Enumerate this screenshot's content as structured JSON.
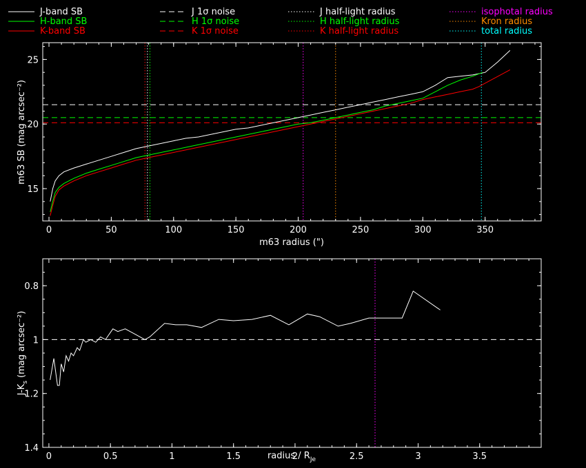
{
  "legend": {
    "col1": [
      {
        "label": "J-band SB",
        "color": "#ffffff",
        "dash": "solid"
      },
      {
        "label": "H-band SB",
        "color": "#00ff00",
        "dash": "solid"
      },
      {
        "label": "K-band SB",
        "color": "#ff0000",
        "dash": "solid"
      }
    ],
    "col2": [
      {
        "label": "J 1σ noise",
        "color": "#ffffff",
        "dash": "dashed"
      },
      {
        "label": "H 1σ noise",
        "color": "#00ff00",
        "dash": "dashed"
      },
      {
        "label": "K 1σ noise",
        "color": "#ff0000",
        "dash": "dashed"
      }
    ],
    "col3": [
      {
        "label": "J half-light radius",
        "color": "#ffffff",
        "dash": "dotted"
      },
      {
        "label": "H half-light radius",
        "color": "#00ff00",
        "dash": "dotted"
      },
      {
        "label": "K half-light radius",
        "color": "#ff0000",
        "dash": "dotted"
      }
    ],
    "col4": [
      {
        "label": "isophotal radius",
        "color": "#ff00ff",
        "dash": "dotted"
      },
      {
        "label": "Kron radius",
        "color": "#ff8c00",
        "dash": "dotted"
      },
      {
        "label": "total radius",
        "color": "#00ffff",
        "dash": "dotted"
      }
    ]
  },
  "chart_data": [
    {
      "type": "line",
      "xlabel": "m63 radius (\")",
      "ylabel": "m63 SB (mag arcsec⁻²)",
      "xlim": [
        -5,
        395
      ],
      "ylim": [
        26.3,
        12.5
      ],
      "xticks": [
        0,
        50,
        100,
        150,
        200,
        250,
        300,
        350
      ],
      "yticks": [
        15,
        20,
        25
      ],
      "series": [
        {
          "name": "J-band SB",
          "color": "#ffffff",
          "x": [
            1,
            3,
            5,
            8,
            12,
            20,
            30,
            40,
            50,
            60,
            70,
            80,
            90,
            100,
            110,
            120,
            130,
            140,
            150,
            160,
            170,
            180,
            190,
            200,
            210,
            220,
            230,
            240,
            250,
            260,
            270,
            280,
            290,
            300,
            310,
            320,
            330,
            340,
            350,
            360,
            370
          ],
          "y": [
            14.0,
            15.0,
            15.6,
            16.0,
            16.3,
            16.6,
            16.9,
            17.2,
            17.5,
            17.8,
            18.1,
            18.3,
            18.5,
            18.7,
            18.9,
            19.0,
            19.2,
            19.4,
            19.6,
            19.7,
            19.9,
            20.1,
            20.3,
            20.5,
            20.7,
            20.9,
            21.1,
            21.3,
            21.5,
            21.7,
            21.9,
            22.1,
            22.3,
            22.5,
            23.0,
            23.6,
            23.7,
            23.8,
            24.0,
            24.8,
            25.7
          ]
        },
        {
          "name": "H-band SB",
          "color": "#00ff00",
          "x": [
            1,
            3,
            5,
            8,
            12,
            20,
            30,
            40,
            50,
            60,
            70,
            80,
            90,
            100,
            110,
            120,
            130,
            140,
            150,
            160,
            170,
            180,
            190,
            200,
            210,
            220,
            230,
            240,
            250,
            260,
            270,
            280,
            290,
            300,
            310,
            320,
            330,
            340,
            348
          ],
          "y": [
            13.2,
            14.0,
            14.7,
            15.1,
            15.4,
            15.8,
            16.2,
            16.5,
            16.8,
            17.1,
            17.4,
            17.6,
            17.8,
            18.0,
            18.2,
            18.4,
            18.6,
            18.8,
            19.0,
            19.2,
            19.4,
            19.6,
            19.8,
            20.0,
            20.1,
            20.3,
            20.5,
            20.7,
            20.9,
            21.1,
            21.4,
            21.6,
            21.8,
            22.0,
            22.5,
            23.0,
            23.4,
            23.7,
            24.0
          ]
        },
        {
          "name": "K-band SB",
          "color": "#ff0000",
          "x": [
            1,
            3,
            5,
            8,
            12,
            20,
            30,
            40,
            50,
            60,
            70,
            80,
            90,
            100,
            110,
            120,
            130,
            140,
            150,
            160,
            170,
            180,
            190,
            200,
            210,
            220,
            230,
            240,
            250,
            260,
            270,
            280,
            290,
            300,
            310,
            320,
            330,
            340,
            345,
            370
          ],
          "y": [
            12.9,
            13.7,
            14.4,
            14.9,
            15.2,
            15.6,
            16.0,
            16.3,
            16.6,
            16.9,
            17.2,
            17.4,
            17.6,
            17.8,
            18.0,
            18.2,
            18.4,
            18.6,
            18.8,
            19.0,
            19.2,
            19.4,
            19.6,
            19.8,
            20.0,
            20.2,
            20.4,
            20.6,
            20.8,
            21.0,
            21.2,
            21.4,
            21.6,
            21.9,
            22.1,
            22.3,
            22.5,
            22.7,
            22.9,
            24.2
          ]
        }
      ],
      "hlines": [
        {
          "name": "J 1σ noise",
          "y": 21.5,
          "color": "#ffffff"
        },
        {
          "name": "H 1σ noise",
          "y": 20.5,
          "color": "#00ff00"
        },
        {
          "name": "K 1σ noise",
          "y": 20.1,
          "color": "#ff0000"
        }
      ],
      "vlines": [
        {
          "name": "J half-light radius",
          "x": 79,
          "color": "#ffffff"
        },
        {
          "name": "H half-light radius",
          "x": 81,
          "color": "#00ff00"
        },
        {
          "name": "K half-light radius",
          "x": 77,
          "color": "#ff0000"
        },
        {
          "name": "isophotal radius",
          "x": 204,
          "color": "#ff00ff"
        },
        {
          "name": "Kron radius",
          "x": 230,
          "color": "#ff8c00"
        },
        {
          "name": "total radius",
          "x": 347,
          "color": "#00ffff"
        }
      ]
    },
    {
      "type": "line",
      "xlabel": "radius / R",
      "xlabel_sub": "Je",
      "ylabel": "J-K",
      "ylabel_sub": "s",
      "ylabel_rest": " (mag arcsec⁻²)",
      "xlim": [
        -0.05,
        4.0
      ],
      "ylim": [
        0.7,
        1.4
      ],
      "xticks": [
        0,
        0.5,
        1,
        1.5,
        2,
        2.5,
        3,
        3.5
      ],
      "xtick_labels": [
        "0",
        "0.5",
        "1",
        "1.5",
        "2",
        "2.5",
        "3",
        "3.5"
      ],
      "yticks": [
        0.8,
        1,
        1.2,
        1.4
      ],
      "ytick_labels": [
        "0.8",
        "1",
        "1.2",
        "1.4"
      ],
      "series": [
        {
          "name": "",
          "color": "#ffffff",
          "x": [
            0.01,
            0.04,
            0.07,
            0.085,
            0.1,
            0.12,
            0.14,
            0.16,
            0.18,
            0.2,
            0.23,
            0.25,
            0.28,
            0.3,
            0.34,
            0.38,
            0.42,
            0.46,
            0.52,
            0.56,
            0.62,
            0.7,
            0.78,
            0.82,
            0.94,
            1.03,
            1.12,
            1.24,
            1.38,
            1.5,
            1.65,
            1.8,
            1.95,
            2.1,
            2.2,
            2.35,
            2.45,
            2.6,
            2.72,
            2.87,
            2.96,
            3.18
          ],
          "y": [
            1.15,
            1.07,
            1.17,
            1.17,
            1.09,
            1.12,
            1.06,
            1.08,
            1.05,
            1.06,
            1.03,
            1.04,
            1.0,
            1.01,
            1.0,
            1.01,
            0.99,
            1.0,
            0.96,
            0.97,
            0.96,
            0.98,
            1.0,
            0.99,
            0.94,
            0.945,
            0.945,
            0.955,
            0.925,
            0.93,
            0.925,
            0.91,
            0.945,
            0.905,
            0.915,
            0.95,
            0.94,
            0.92,
            0.92,
            0.92,
            0.82,
            0.89
          ]
        }
      ],
      "hlines": [
        {
          "name": "",
          "y": 1.0,
          "color": "#ffffff"
        }
      ],
      "vlines": [
        {
          "name": "",
          "x": 2.65,
          "color": "#ff00ff"
        }
      ]
    }
  ]
}
